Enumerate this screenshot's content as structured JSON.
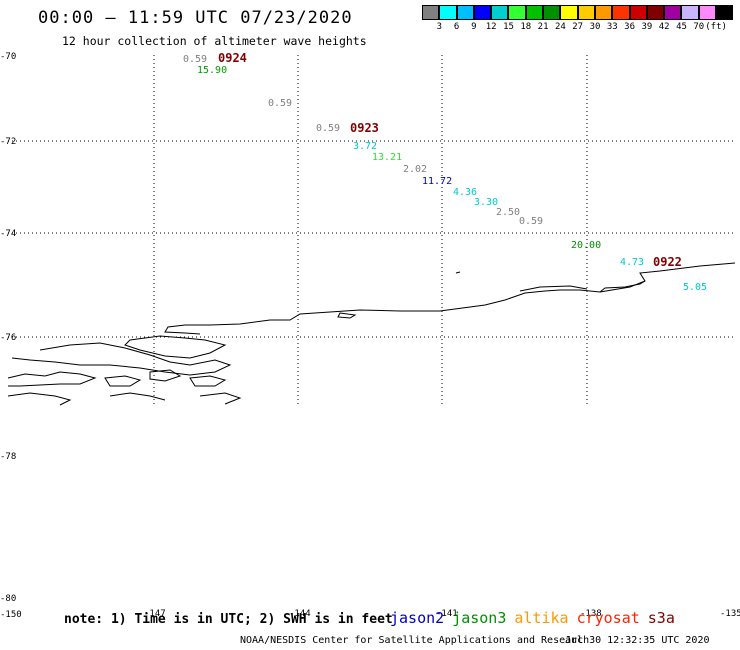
{
  "header": {
    "title": "00:00 – 11:59 UTC 07/23/2020",
    "subtitle": "12 hour collection of altimeter wave heights"
  },
  "colorbar": {
    "colors": [
      "#808080",
      "#00ffff",
      "#00bfff",
      "#0000ff",
      "#00cfcf",
      "#33ff33",
      "#00c000",
      "#009000",
      "#ffff00",
      "#ffcc00",
      "#ff9900",
      "#ff3300",
      "#cc0000",
      "#800000",
      "#a000a0",
      "#c8b4ff",
      "#ff88ff",
      "#000000"
    ],
    "labels": [
      "3",
      "6",
      "9",
      "12",
      "15",
      "18",
      "21",
      "24",
      "27",
      "30",
      "33",
      "36",
      "39",
      "42",
      "45",
      "70",
      "(ft)"
    ]
  },
  "axes": {
    "lat_labels": [
      "-70",
      "-72",
      "-74",
      "-76",
      "-78",
      "-80"
    ],
    "lon_labels": [
      "-150",
      "-147",
      "-144",
      "-141",
      "-138",
      "-135"
    ]
  },
  "passes": [
    {
      "time": "0924",
      "color": "#800000"
    },
    {
      "time": "0923",
      "color": "#800000"
    },
    {
      "time": "0922",
      "color": "#800000"
    }
  ],
  "wave_heights": [
    {
      "value": "0.59",
      "color": "#808080"
    },
    {
      "value": "15.90",
      "color": "#00a000"
    },
    {
      "value": "0.59",
      "color": "#808080"
    },
    {
      "value": "0.59",
      "color": "#808080"
    },
    {
      "value": "3.72",
      "color": "#00cccc"
    },
    {
      "value": "13.21",
      "color": "#33dd33"
    },
    {
      "value": "2.02",
      "color": "#808080"
    },
    {
      "value": "11.72",
      "color": "#0000cc"
    },
    {
      "value": "4.36",
      "color": "#00cccc"
    },
    {
      "value": "3.30",
      "color": "#00cccc"
    },
    {
      "value": "2.50",
      "color": "#808080"
    },
    {
      "value": "0.59",
      "color": "#808080"
    },
    {
      "value": "20.00",
      "color": "#009000"
    },
    {
      "value": "4.73",
      "color": "#00cccc"
    },
    {
      "value": "5.05",
      "color": "#00cccc"
    }
  ],
  "footer": {
    "note": "note: 1) Time is in UTC; 2) SWH is in feet",
    "satellites": [
      {
        "name": "jason2",
        "color": "#0000cc"
      },
      {
        "name": "jason3",
        "color": "#009000"
      },
      {
        "name": "altika",
        "color": "#ff9900"
      },
      {
        "name": "cryosat",
        "color": "#ff2200"
      },
      {
        "name": "s3a",
        "color": "#800000"
      }
    ],
    "credit": "NOAA/NESDIS Center for Satellite Applications and Research",
    "timestamp": "Jul 30 12:32:35 UTC 2020"
  }
}
